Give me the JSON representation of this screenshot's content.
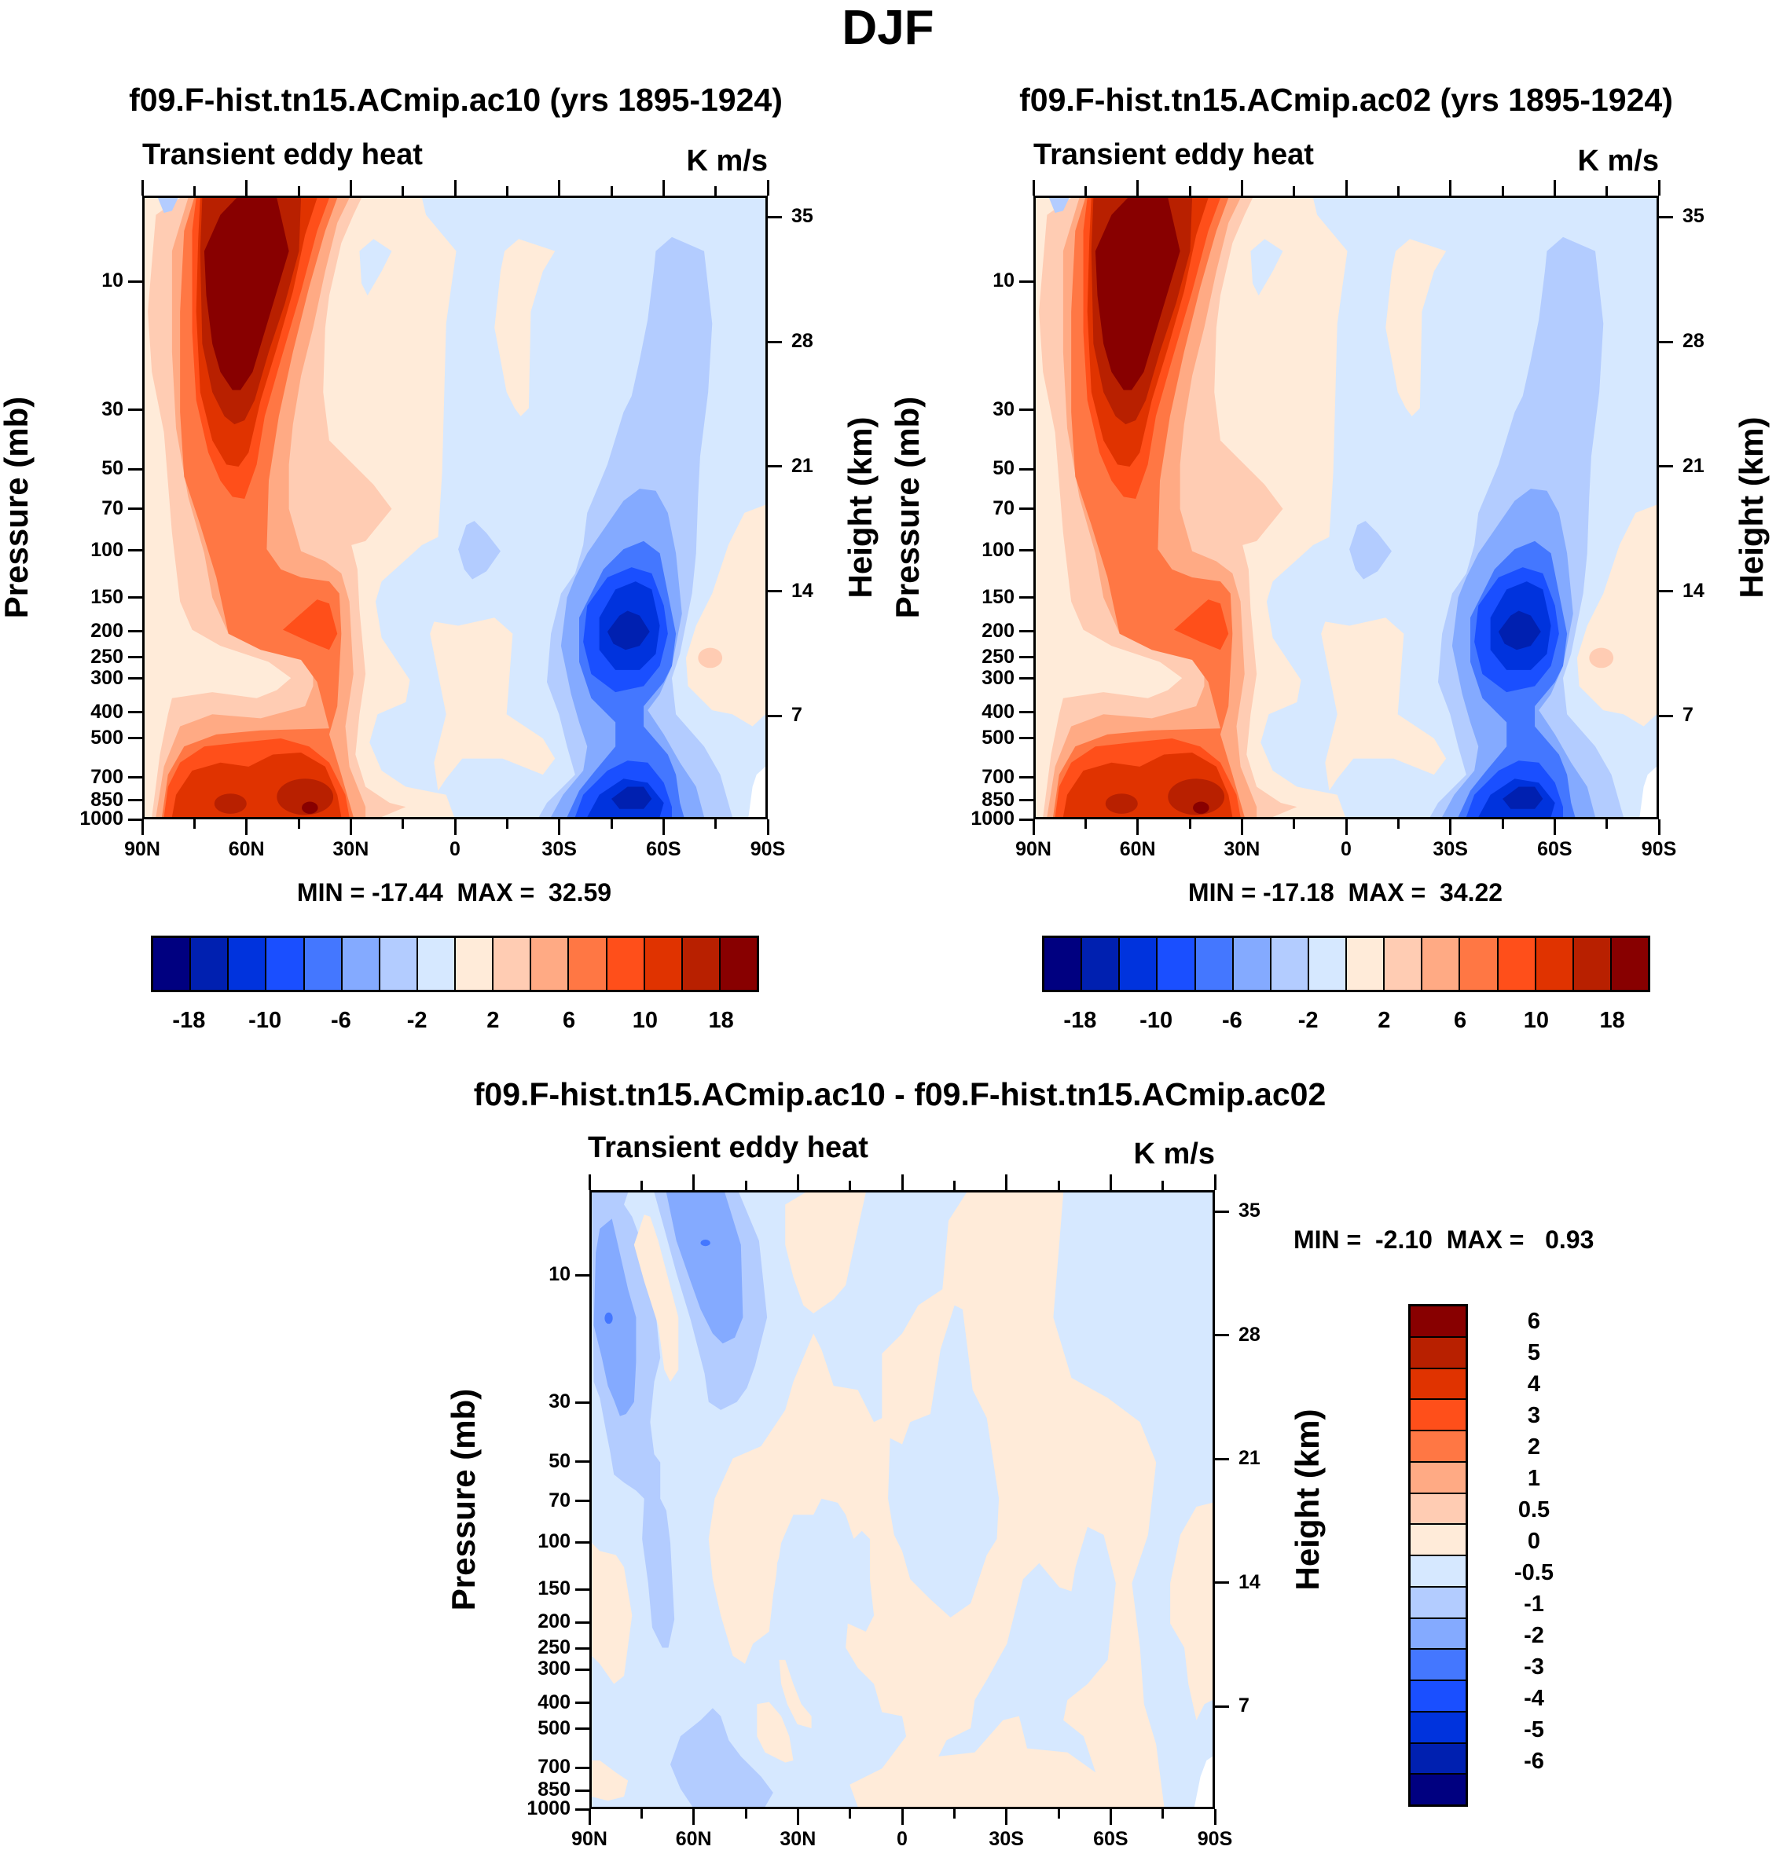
{
  "figure_title": "DJF",
  "axes": {
    "pressure_title": "Pressure (mb)",
    "height_title": "Height (km)",
    "pressure_ticks": [
      "10",
      "30",
      "50",
      "70",
      "100",
      "150",
      "200",
      "250",
      "300",
      "400",
      "500",
      "700",
      "850",
      "1000"
    ],
    "pressure_values": [
      10,
      30,
      50,
      70,
      100,
      150,
      200,
      250,
      300,
      400,
      500,
      700,
      850,
      1000
    ],
    "height_ticks": [
      "35",
      "28",
      "21",
      "14",
      "7"
    ],
    "height_values": [
      35,
      28,
      21,
      14,
      7
    ],
    "lat_ticks": [
      "90N",
      "60N",
      "30N",
      "0",
      "30S",
      "60S",
      "90S"
    ]
  },
  "panels": [
    {
      "title": "f09.F-hist.tn15.ACmip.ac10 (yrs 1895-1924)",
      "left_label": "Transient eddy heat",
      "right_label": "K m/s",
      "min_max": "MIN = -17.44  MAX =  32.59",
      "min": -17.44,
      "max": 32.59
    },
    {
      "title": "f09.F-hist.tn15.ACmip.ac02 (yrs 1895-1924)",
      "left_label": "Transient eddy heat",
      "right_label": "K m/s",
      "min_max": "MIN = -17.18  MAX =  34.22",
      "min": -17.18,
      "max": 34.22
    },
    {
      "title": "f09.F-hist.tn15.ACmip.ac10 - f09.F-hist.tn15.ACmip.ac02",
      "left_label": "Transient eddy heat",
      "right_label": "K m/s",
      "min_max": "MIN =  -2.10  MAX =   0.93",
      "min": -2.1,
      "max": 0.93
    }
  ],
  "colorbar_top": {
    "colors": [
      "#000080",
      "#0020B0",
      "#0033DD",
      "#1A4FFF",
      "#4477FF",
      "#84AAFF",
      "#B3CCFF",
      "#D6E8FF",
      "#FFEBD9",
      "#FFCCB3",
      "#FFAA84",
      "#FF7744",
      "#FF4F1A",
      "#E03300",
      "#B82000",
      "#880000"
    ],
    "labels": [
      "-18",
      "-10",
      "-6",
      "-2",
      "2",
      "6",
      "10",
      "18"
    ]
  },
  "colorbar_diff": {
    "colors": [
      "#880000",
      "#B82000",
      "#E03300",
      "#FF4F1A",
      "#FF7744",
      "#FFAA84",
      "#FFCCB3",
      "#FFEBD9",
      "#D6E8FF",
      "#B3CCFF",
      "#84AAFF",
      "#4477FF",
      "#1A4FFF",
      "#0033DD",
      "#0020B0",
      "#000080"
    ],
    "labels": [
      "6",
      "5",
      "4",
      "3",
      "2",
      "1",
      "0.5",
      "0",
      "-0.5",
      "-1",
      "-2",
      "-3",
      "-4",
      "-5",
      "-6"
    ]
  },
  "chart_data": [
    {
      "type": "heatmap",
      "title": "f09.F-hist.tn15.ACmip.ac10 (yrs 1895-1924)",
      "variable": "Transient eddy heat",
      "units": "K m/s",
      "xlabel": "",
      "ylabel": "Pressure (mb)",
      "ylabel_right": "Height (km)",
      "x_ticks": [
        "90N",
        "60N",
        "30N",
        "0",
        "30S",
        "60S",
        "90S"
      ],
      "ylim": [
        1000,
        5
      ],
      "levels": [
        -18,
        -14,
        -10,
        -8,
        -6,
        -4,
        -2,
        0,
        2,
        4,
        6,
        8,
        10,
        14,
        18
      ],
      "min": -17.44,
      "max": 32.59
    },
    {
      "type": "heatmap",
      "title": "f09.F-hist.tn15.ACmip.ac02 (yrs 1895-1924)",
      "variable": "Transient eddy heat",
      "units": "K m/s",
      "xlabel": "",
      "ylabel": "Pressure (mb)",
      "ylabel_right": "Height (km)",
      "x_ticks": [
        "90N",
        "60N",
        "30N",
        "0",
        "30S",
        "60S",
        "90S"
      ],
      "ylim": [
        1000,
        5
      ],
      "levels": [
        -18,
        -14,
        -10,
        -8,
        -6,
        -4,
        -2,
        0,
        2,
        4,
        6,
        8,
        10,
        14,
        18
      ],
      "min": -17.18,
      "max": 34.22
    },
    {
      "type": "heatmap",
      "title": "f09.F-hist.tn15.ACmip.ac10 - f09.F-hist.tn15.ACmip.ac02",
      "variable": "Transient eddy heat",
      "units": "K m/s",
      "xlabel": "",
      "ylabel": "Pressure (mb)",
      "ylabel_right": "Height (km)",
      "x_ticks": [
        "90N",
        "60N",
        "30N",
        "0",
        "30S",
        "60S",
        "90S"
      ],
      "ylim": [
        1000,
        5
      ],
      "levels": [
        -6,
        -5,
        -4,
        -3,
        -2,
        -1,
        -0.5,
        0,
        0.5,
        1,
        2,
        3,
        4,
        5,
        6
      ],
      "min": -2.1,
      "max": 0.93
    }
  ]
}
